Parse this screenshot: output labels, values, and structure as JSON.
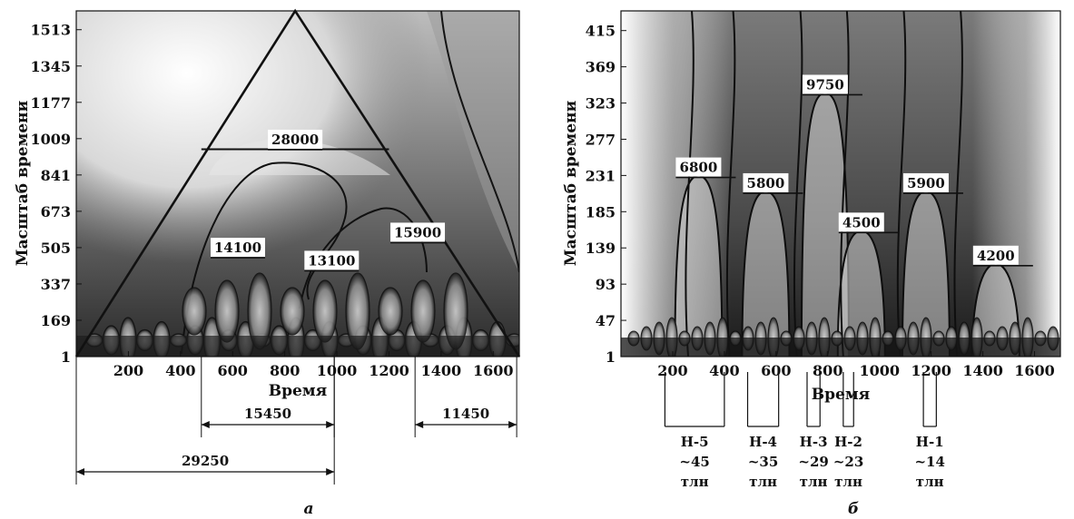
{
  "chart_data": [
    {
      "type": "heatmap",
      "panel_caption": "а",
      "xlabel": "Время",
      "ylabel": "Масштаб времени",
      "xlim": [
        0,
        1700
      ],
      "ylim": [
        1,
        1600
      ],
      "x_ticks": [
        200,
        400,
        600,
        800,
        1000,
        1200,
        1400,
        1600
      ],
      "y_ticks": [
        1,
        169,
        337,
        505,
        673,
        841,
        1009,
        1177,
        1345,
        1513
      ],
      "triangle": {
        "apex": [
          840,
          1600
        ],
        "base": [
          0,
          1700
        ]
      },
      "horizontal_line": {
        "y": 960,
        "x_from": 480,
        "x_to": 1200
      },
      "annotations": [
        {
          "text": "28000",
          "x": 840,
          "y": 1000
        },
        {
          "text": "14100",
          "x": 620,
          "y": 500
        },
        {
          "text": "13100",
          "x": 980,
          "y": 440
        },
        {
          "text": "15900",
          "x": 1310,
          "y": 570
        }
      ],
      "dimension_lines": [
        {
          "text": "15450",
          "from": 480,
          "to": 990
        },
        {
          "text": "11450",
          "from": 1300,
          "to": 1690
        },
        {
          "text": "29250",
          "from": 0,
          "to": 990
        }
      ]
    },
    {
      "type": "heatmap",
      "panel_caption": "б",
      "xlabel": "Время",
      "ylabel": "Масштаб времени",
      "xlim": [
        0,
        1700
      ],
      "ylim": [
        1,
        440
      ],
      "x_ticks": [
        200,
        400,
        600,
        800,
        1000,
        1200,
        1400,
        1600
      ],
      "y_ticks": [
        1,
        47,
        93,
        139,
        185,
        231,
        277,
        323,
        369,
        415
      ],
      "annotations": [
        {
          "text": "6800",
          "x": 300,
          "y": 240
        },
        {
          "text": "5800",
          "x": 560,
          "y": 220
        },
        {
          "text": "9750",
          "x": 790,
          "y": 345
        },
        {
          "text": "4500",
          "x": 930,
          "y": 170
        },
        {
          "text": "5900",
          "x": 1180,
          "y": 220
        },
        {
          "text": "4200",
          "x": 1450,
          "y": 128
        }
      ],
      "episodes": [
        {
          "name": "Н-5",
          "age": "~45",
          "unit": "тлн",
          "from": 170,
          "to": 400
        },
        {
          "name": "Н-4",
          "age": "~35",
          "unit": "тлн",
          "from": 490,
          "to": 610
        },
        {
          "name": "Н-3",
          "age": "~29",
          "unit": "тлн",
          "from": 720,
          "to": 770
        },
        {
          "name": "Н-2",
          "age": "~23",
          "unit": "тлн",
          "from": 860,
          "to": 900
        },
        {
          "name": "Н-1",
          "age": "~14",
          "unit": "тлн",
          "from": 1170,
          "to": 1220
        }
      ]
    }
  ]
}
